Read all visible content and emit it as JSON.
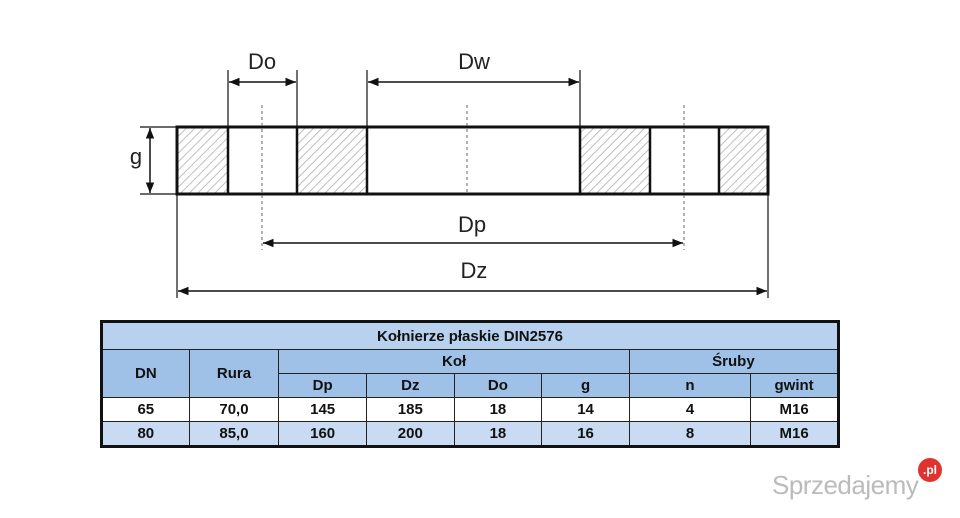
{
  "drawing": {
    "labels": {
      "do": "Do",
      "dw": "Dw",
      "g": "g",
      "dp": "Dp",
      "dz": "Dz"
    }
  },
  "table": {
    "title": "Kołnierze płaskie DIN2576",
    "group_headers": [
      "DN",
      "Rura",
      "Koł",
      "Śruby"
    ],
    "sub_headers": [
      "Dp",
      "Dz",
      "Do",
      "g",
      "n",
      "gwint"
    ],
    "rows": [
      [
        "65",
        "70,0",
        "145",
        "185",
        "18",
        "14",
        "4",
        "M16"
      ],
      [
        "80",
        "85,0",
        "160",
        "200",
        "18",
        "16",
        "8",
        "M16"
      ]
    ]
  },
  "watermark": {
    "brand": "Sprzedajemy",
    "tld": ".pl"
  }
}
